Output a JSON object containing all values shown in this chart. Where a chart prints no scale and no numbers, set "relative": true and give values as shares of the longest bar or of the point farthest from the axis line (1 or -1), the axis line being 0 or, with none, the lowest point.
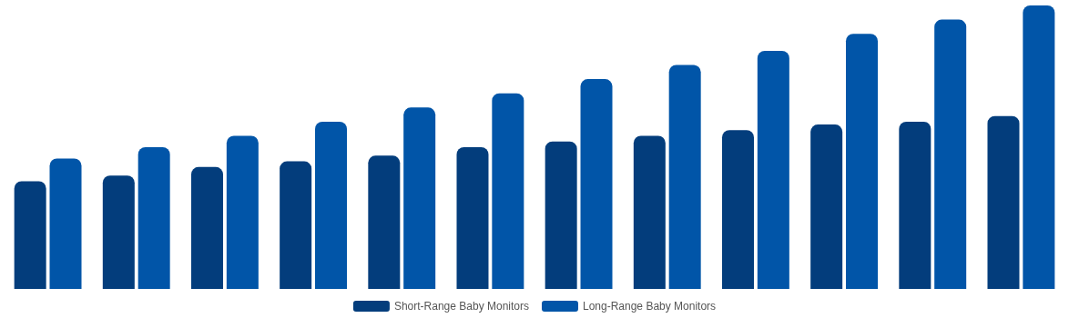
{
  "chart_data": {
    "type": "bar",
    "relative": true,
    "categories": [
      null,
      null,
      null,
      null,
      null,
      null,
      null,
      null,
      null,
      null,
      null,
      null
    ],
    "series": [
      {
        "name": "Short-Range Baby Monitors",
        "color": "#033d7c",
        "values": [
          0.38,
          0.4,
          0.43,
          0.45,
          0.47,
          0.5,
          0.52,
          0.54,
          0.56,
          0.58,
          0.59,
          0.61
        ]
      },
      {
        "name": "Long-Range Baby Monitors",
        "color": "#0155a8",
        "values": [
          0.46,
          0.5,
          0.54,
          0.59,
          0.64,
          0.69,
          0.74,
          0.79,
          0.84,
          0.9,
          0.95,
          1
        ]
      }
    ],
    "legend": "bottom"
  }
}
